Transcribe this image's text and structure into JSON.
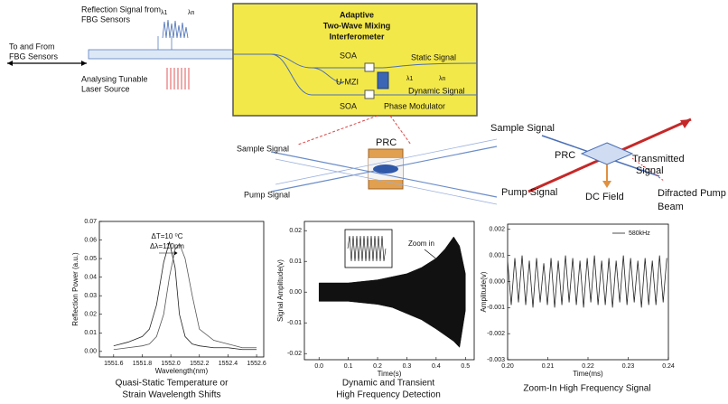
{
  "diagram": {
    "fbg": {
      "reflection": [
        "Reflection Signal from",
        "FBG Sensors"
      ],
      "lambda_1": "λ1",
      "lambda_n": "λn",
      "to_from": [
        "To  and From",
        "FBG Sensors"
      ],
      "laser": [
        "Analysing Tunable",
        "Laser Source"
      ]
    },
    "interferometer": {
      "title": [
        "Adaptive",
        "Two-Wave Mixing",
        "Interferometer"
      ],
      "soa_top": "SOA",
      "umzi": "U-MZI",
      "soa_bottom": "SOA",
      "static": "Static Signal",
      "lambda_1": "λ1",
      "lambda_n": "λn",
      "dynamic": "Dynamic Signal",
      "modulator": "Phase Modulator"
    },
    "crystal": {
      "sample": "Sample Signal",
      "prc": "PRC",
      "pump": "Pump Signal"
    },
    "geometry": {
      "sample": "Sample Signal",
      "prc": "PRC",
      "transmitted": [
        "Transmitted",
        "Signal"
      ],
      "pump": "Pump Signal",
      "dc_field": "DC Field",
      "diffracted": [
        "Difracted Pump",
        "Beam"
      ]
    }
  },
  "chart_data": [
    {
      "type": "line",
      "xlabel": "Wavelength(nm)",
      "ylabel": "Reflection Power (a.u.)",
      "annotations": [
        "ΔT=10 ⁰C",
        "Δλ=110pm"
      ],
      "caption": [
        "Quasi-Static Temperature or",
        "Strain Wavelength Shifts"
      ],
      "x": [
        1551.6,
        1551.7,
        1551.8,
        1551.85,
        1551.9,
        1551.95,
        1551.99,
        1552.03,
        1552.06,
        1552.1,
        1552.15,
        1552.2,
        1552.3,
        1552.4,
        1552.5,
        1552.6
      ],
      "series": [
        {
          "color": "#222222",
          "values": [
            0.003,
            0.005,
            0.008,
            0.012,
            0.025,
            0.048,
            0.059,
            0.045,
            0.02,
            0.008,
            0.004,
            0.003,
            0.002,
            0.002,
            0.001,
            0.001
          ]
        },
        {
          "color": "#555555",
          "values": [
            0.001,
            0.002,
            0.003,
            0.004,
            0.008,
            0.02,
            0.04,
            0.055,
            0.058,
            0.05,
            0.03,
            0.012,
            0.006,
            0.004,
            0.002,
            0.002
          ]
        }
      ],
      "xlim": [
        1551.5,
        1552.65
      ],
      "xticks": [
        1551.6,
        1551.8,
        {
          "value": 1552,
          "label": "1552.0"
        },
        1552.2,
        1552.4,
        1552.6
      ],
      "ylim": [
        -0.003,
        0.07
      ],
      "yticks": [
        {
          "value": 0,
          "label": "0.00"
        },
        0.01,
        0.02,
        0.03,
        0.04,
        0.05,
        0.06,
        0.07
      ]
    },
    {
      "type": "band",
      "xlabel": "Time(s)",
      "ylabel": "Signal Amplitude(v)",
      "annotations": [
        "Zoom in"
      ],
      "caption": [
        "Dynamic and Transient",
        "High Frequency Detection"
      ],
      "x": [
        0,
        0.05,
        0.1,
        0.15,
        0.2,
        0.25,
        0.3,
        0.35,
        0.4,
        0.43,
        0.46,
        0.48,
        0.5
      ],
      "series": [
        {
          "color": "#111111",
          "values": [
            0.003,
            0.003,
            0.003,
            0.0035,
            0.004,
            0.005,
            0.006,
            0.008,
            0.011,
            0.014,
            0.018,
            0.015,
            0.006
          ]
        },
        {
          "color": "#111111",
          "values": [
            -0.003,
            -0.003,
            -0.003,
            -0.0035,
            -0.004,
            -0.005,
            -0.007,
            -0.009,
            -0.012,
            -0.014,
            -0.016,
            -0.018,
            -0.006
          ]
        }
      ],
      "xlim": [
        -0.05,
        0.53
      ],
      "xticks": [
        {
          "value": 0,
          "label": "0.0"
        },
        0.1,
        0.2,
        0.3,
        0.4,
        0.5
      ],
      "ylim": [
        -0.022,
        0.023
      ],
      "yticks": [
        -0.02,
        -0.01,
        {
          "value": 0,
          "label": "0.00"
        },
        0.01,
        0.02
      ]
    },
    {
      "type": "line",
      "xlabel": "Time(ms)",
      "ylabel": "Amplitude(v)",
      "legend": "upper right",
      "caption": [
        "Zoom-In High Frequency Signal"
      ],
      "x": [
        0.2,
        0.2009,
        0.2018,
        0.2027,
        0.2036,
        0.2045,
        0.2054,
        0.2063,
        0.2072,
        0.2081,
        0.209,
        0.2099,
        0.2108,
        0.2117,
        0.2126,
        0.2135,
        0.2144,
        0.2153,
        0.2162,
        0.2171,
        0.218,
        0.2189,
        0.2198,
        0.2207,
        0.2216,
        0.2225,
        0.2234,
        0.2243,
        0.2252,
        0.2261,
        0.227,
        0.2279,
        0.2288,
        0.2297,
        0.2306,
        0.2315,
        0.2324,
        0.2333,
        0.2342,
        0.2351,
        0.236,
        0.2369,
        0.2378,
        0.2387,
        0.2396
      ],
      "series": [
        {
          "name": "580kHz",
          "color": "#222222",
          "values": [
            0.0008,
            -0.0009,
            0.0009,
            -0.0008,
            0.001,
            -0.0009,
            0.0008,
            -0.001,
            0.0009,
            -0.0008,
            0.0007,
            -0.0009,
            0.0009,
            -0.001,
            0.0008,
            -0.0009,
            0.001,
            -0.0008,
            0.0009,
            -0.0009,
            0.0008,
            -0.001,
            0.0009,
            -0.0008,
            0.001,
            -0.0009,
            0.0008,
            -0.0009,
            0.0009,
            -0.001,
            0.0008,
            -0.0008,
            0.001,
            -0.0009,
            0.0009,
            -0.0008,
            0.0008,
            -0.001,
            0.0009,
            -0.0009,
            0.0008,
            -0.0009,
            0.001,
            -0.0008,
            0.0009
          ]
        }
      ],
      "xlim": [
        0.2,
        0.24
      ],
      "xticks": [
        {
          "value": 0.2,
          "label": "0.20"
        },
        0.21,
        0.22,
        0.23,
        {
          "value": 0.24,
          "label": "0.24"
        }
      ],
      "ylim": [
        -0.003,
        0.0022
      ],
      "yticks": [
        -0.003,
        -0.002,
        -0.001,
        {
          "value": 0,
          "label": "0.000"
        },
        0.001,
        0.002
      ]
    }
  ]
}
